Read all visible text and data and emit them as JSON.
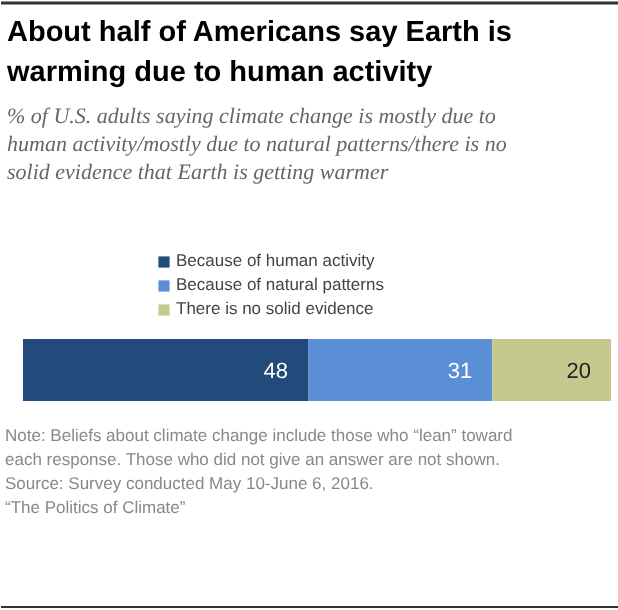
{
  "chart_data": {
    "type": "bar",
    "orientation": "horizontal",
    "stacked": true,
    "title": "About half of Americans say Earth is warming due to human activity",
    "subtitle": "% of U.S. adults saying climate change is mostly due to human activity/mostly due to natural patterns/there is no solid evidence that Earth is getting warmer",
    "categories": [
      null
    ],
    "series": [
      {
        "name": "Because of human activity",
        "color": "#224a7a",
        "values": [
          48
        ]
      },
      {
        "name": "Because of natural patterns",
        "color": "#5a8fd6",
        "values": [
          31
        ]
      },
      {
        "name": "There is no solid evidence",
        "color": "#c6c98f",
        "values": [
          20
        ]
      }
    ],
    "data_labels": true,
    "legend": "top",
    "grid": false,
    "annotations": [
      "Note: Beliefs about climate change include those who “lean” toward each response. Those who did not give an answer are not shown.",
      "Source: Survey conducted May 10-June 6, 2016.",
      "“The Politics of Climate”"
    ]
  }
}
